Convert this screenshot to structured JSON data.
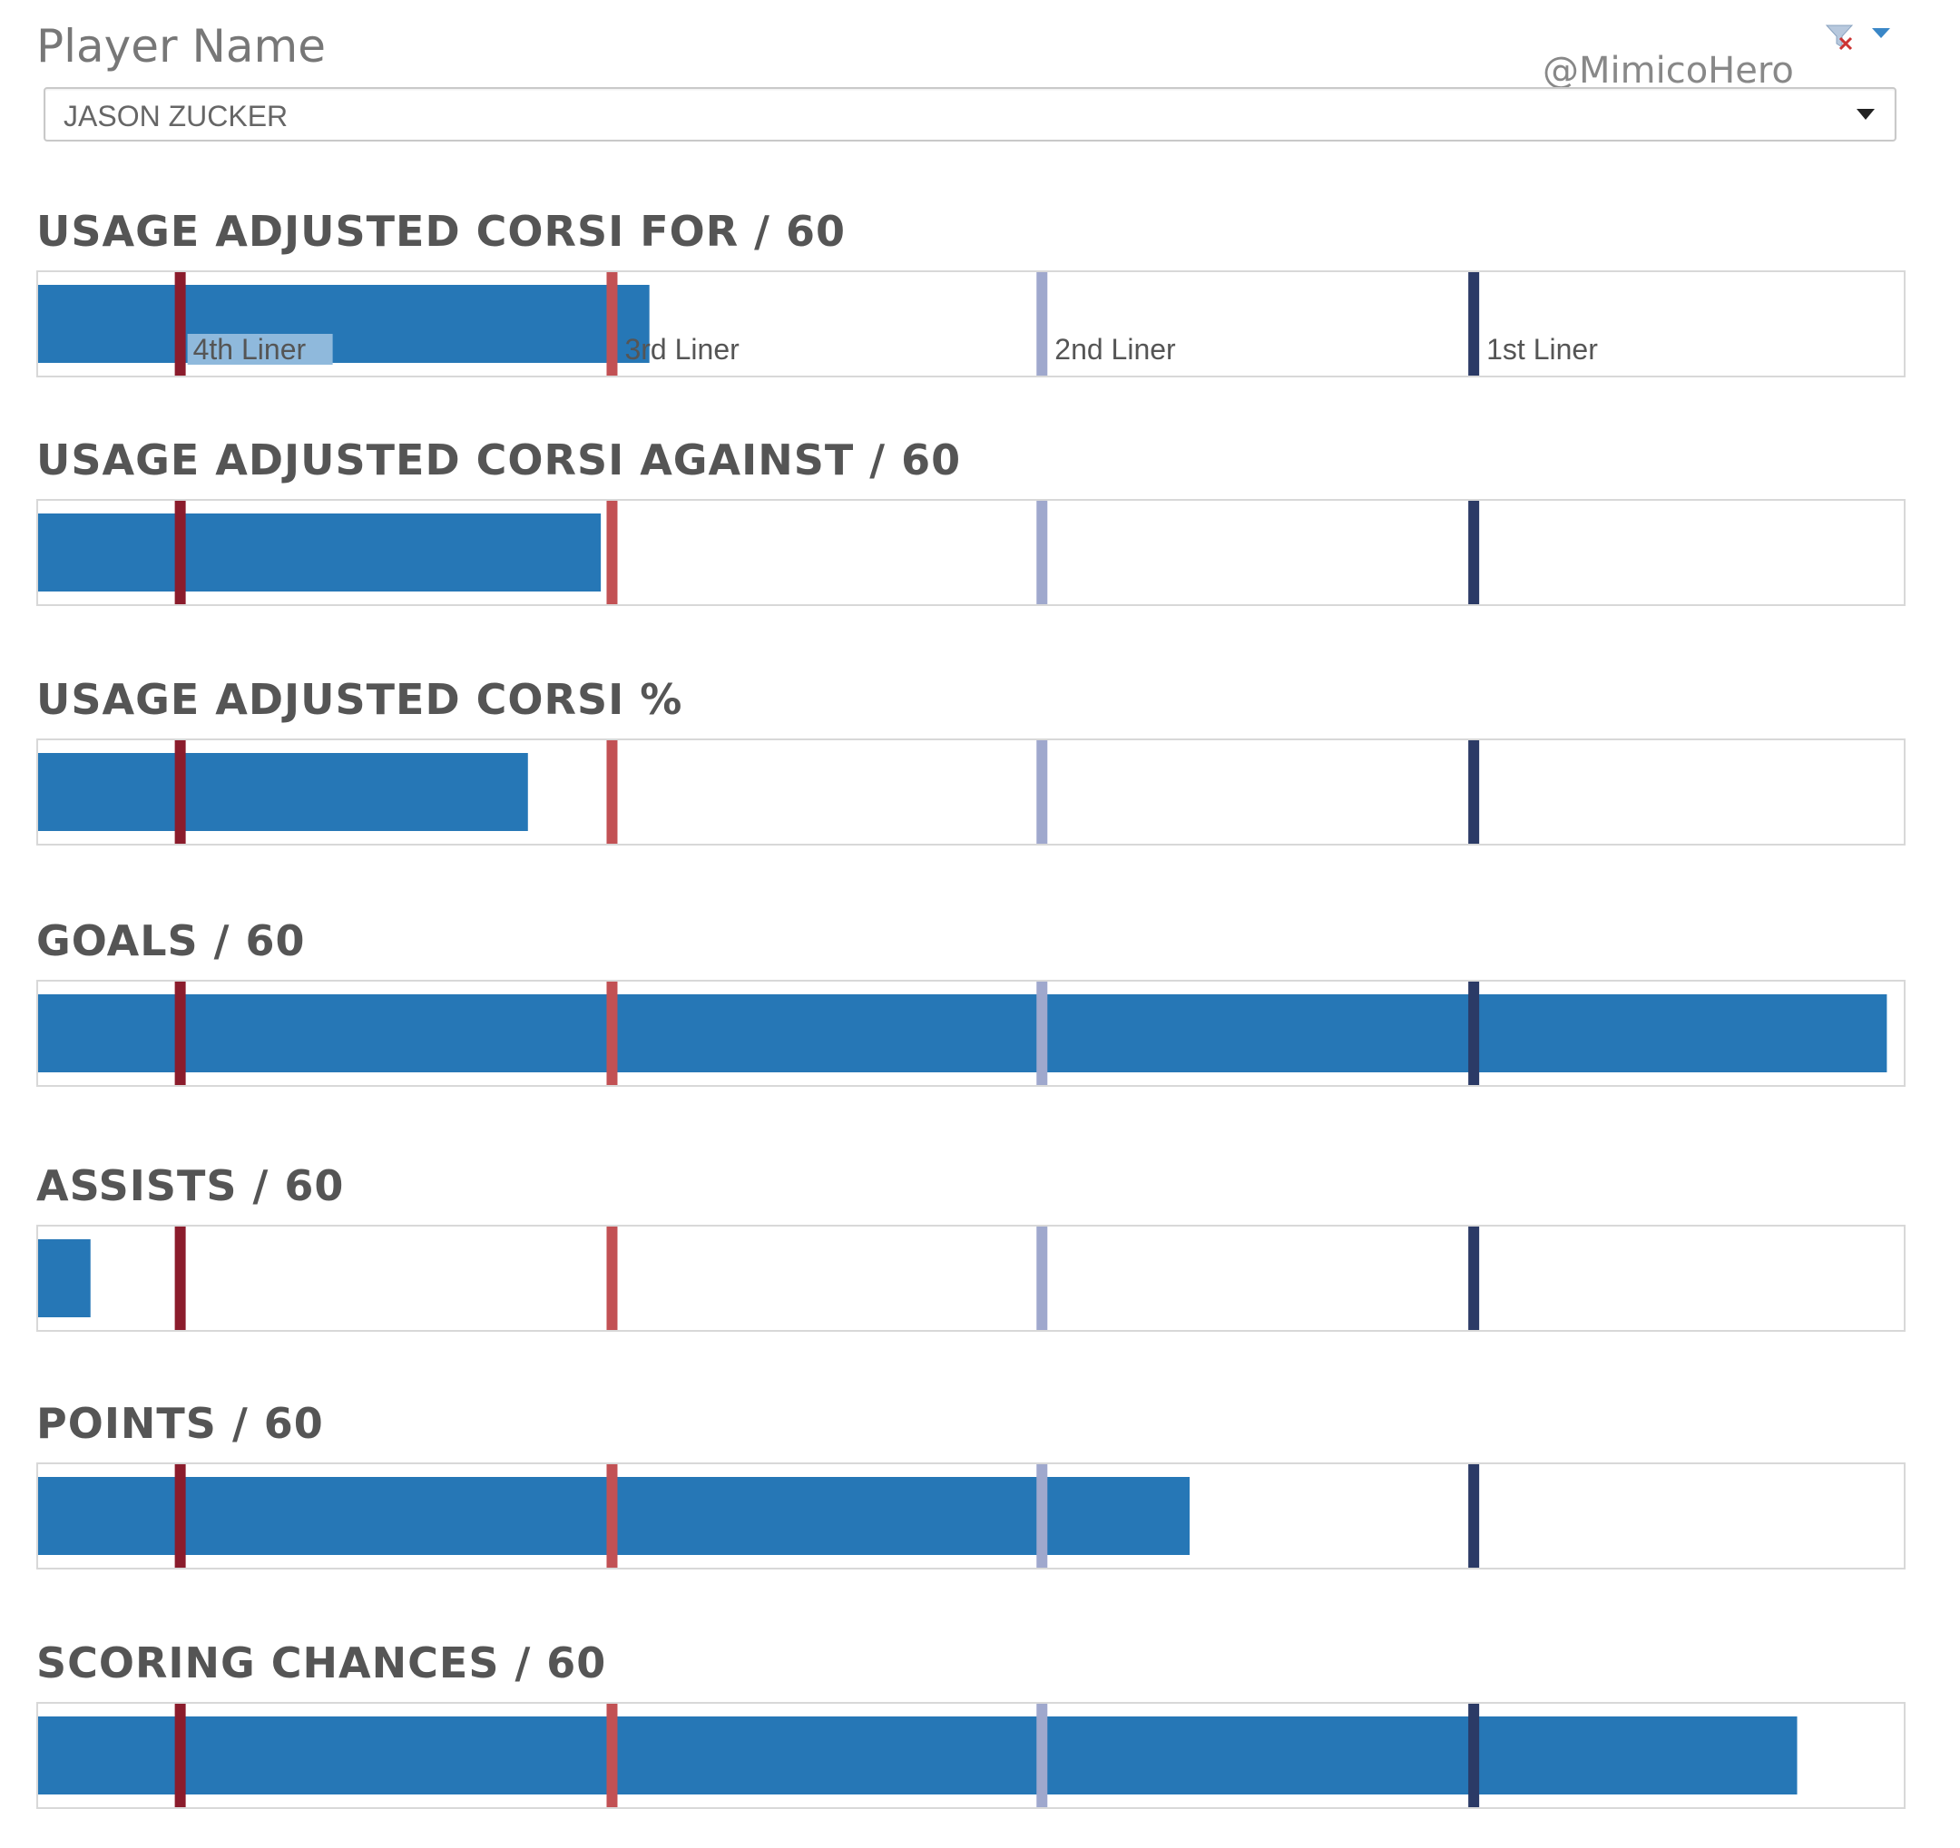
{
  "header": {
    "filter_title": "Player Name",
    "selected_player": "JASON ZUCKER",
    "credit": "@MimicoHero"
  },
  "chart_data": {
    "type": "bar",
    "orientation": "horizontal",
    "player": "JASON ZUCKER",
    "xlim": [
      0,
      100
    ],
    "grid": false,
    "reference_lines": [
      {
        "label": "4th Liner",
        "value": 7.7,
        "color": "#8b1c2c"
      },
      {
        "label": "3rd Liner",
        "value": 30.8,
        "color": "#c25154"
      },
      {
        "label": "2nd Liner",
        "value": 53.8,
        "color": "#9fa8cd"
      },
      {
        "label": "1st Liner",
        "value": 76.9,
        "color": "#2b3a66"
      }
    ],
    "bar_color": "#2677b6",
    "panels": [
      {
        "title": "USAGE ADJUSTED CORSI FOR / 60",
        "value": 32.8,
        "show_line_labels": true
      },
      {
        "title": "USAGE ADJUSTED CORSI AGAINST / 60",
        "value": 30.2,
        "show_line_labels": false
      },
      {
        "title": "USAGE ADJUSTED CORSI %",
        "value": 26.3,
        "show_line_labels": false
      },
      {
        "title": "GOALS / 60",
        "value": 99.0,
        "show_line_labels": false
      },
      {
        "title": "ASSISTS / 60",
        "value": 2.9,
        "show_line_labels": false
      },
      {
        "title": "POINTS / 60",
        "value": 61.7,
        "show_line_labels": false
      },
      {
        "title": "SCORING CHANCES / 60",
        "value": 94.2,
        "show_line_labels": false
      }
    ]
  }
}
